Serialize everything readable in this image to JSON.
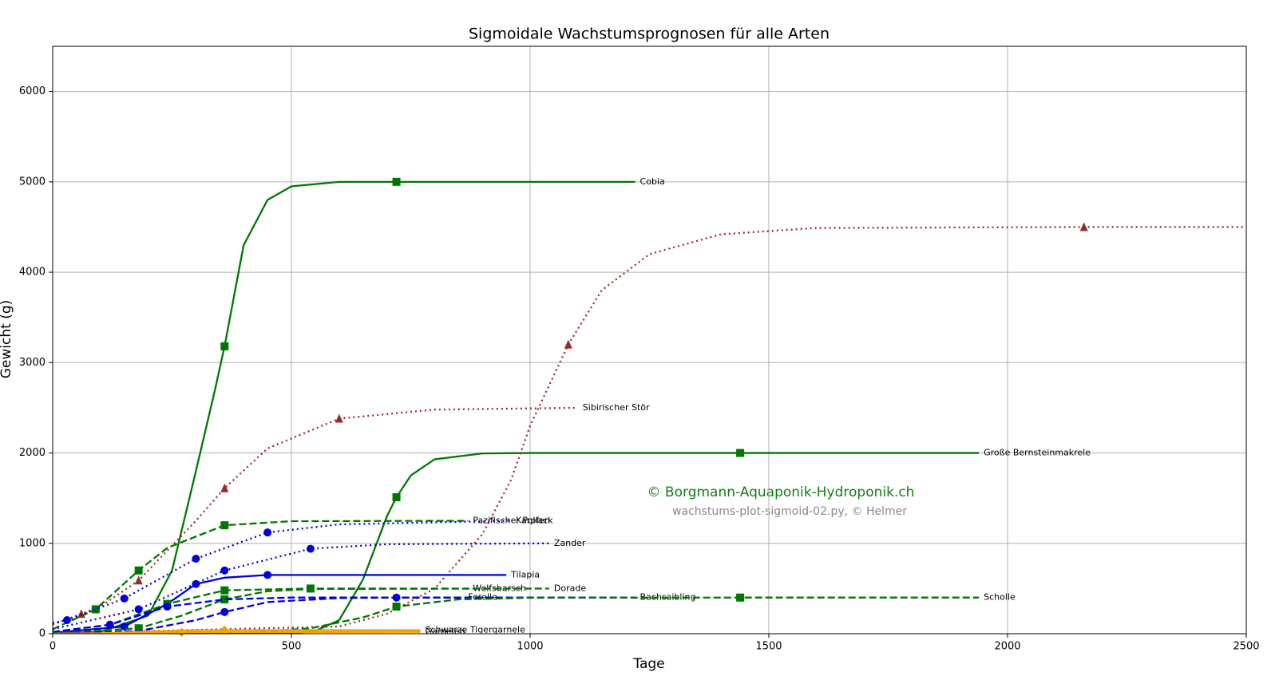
{
  "chart_data": {
    "type": "line",
    "title": "Sigmoidale Wachstumsprognosen für alle Arten",
    "x_label": "Tage",
    "y_label": "Gewicht (g)",
    "xlim": [
      0,
      2500
    ],
    "ylim": [
      0,
      6500
    ],
    "xticks": [
      0,
      500,
      1000,
      1500,
      2000,
      2500
    ],
    "yticks": [
      0,
      1000,
      2000,
      3000,
      4000,
      5000,
      6000
    ],
    "grid": true,
    "annotations": [
      "© Borgmann-Aquaponik-Hydroponik.ch",
      "wachstums-plot-sigmoid-02.py, © Helmer"
    ],
    "series": [
      {
        "name": "Cobia",
        "color": "#007700",
        "linestyle": "solid",
        "marker": "square",
        "x": [
          0,
          100,
          200,
          250,
          300,
          340,
          360,
          400,
          450,
          500,
          600,
          720,
          1220
        ],
        "values": [
          5,
          20,
          200,
          700,
          1800,
          2700,
          3180,
          4300,
          4800,
          4950,
          5000,
          5000,
          5000
        ],
        "markers": {
          "x": [
            360,
            720
          ],
          "values": [
            3180,
            5000
          ]
        }
      },
      {
        "name": "Große Bernsteinmakrele",
        "color": "#007700",
        "linestyle": "solid",
        "marker": "square",
        "x": [
          0,
          500,
          550,
          600,
          650,
          700,
          720,
          750,
          800,
          900,
          1000,
          1440,
          1940
        ],
        "values": [
          0,
          5,
          30,
          150,
          600,
          1300,
          1510,
          1750,
          1930,
          1995,
          2000,
          2000,
          2000
        ],
        "markers": {
          "x": [
            720,
            1440
          ],
          "values": [
            1510,
            2000
          ]
        }
      },
      {
        "name": "Sibirischer Stör",
        "color": "#992a2a",
        "linestyle": "dotted",
        "marker": "triangle",
        "x": [
          0,
          60,
          100,
          180,
          200,
          300,
          360,
          450,
          600,
          800,
          1100
        ],
        "values": [
          100,
          220,
          300,
          590,
          700,
          1250,
          1610,
          2050,
          2380,
          2480,
          2500
        ],
        "markers": {
          "x": [
            60,
            180,
            360,
            600
          ],
          "values": [
            220,
            590,
            1610,
            2380
          ]
        }
      },
      {
        "color": "#992a2a",
        "linestyle": "dotted",
        "marker": "triangle",
        "x": [
          0,
          600,
          700,
          800,
          900,
          960,
          1000,
          1080,
          1150,
          1250,
          1400,
          1600,
          2160,
          2500
        ],
        "values": [
          5,
          80,
          220,
          500,
          1100,
          1700,
          2300,
          3200,
          3800,
          4200,
          4420,
          4490,
          4500,
          4500
        ],
        "markers": {
          "x": [
            1080,
            2160
          ],
          "values": [
            3200,
            4500
          ]
        }
      },
      {
        "name": "Pazifischer Pollack",
        "color": "#007700",
        "linestyle": "dashed",
        "marker": "square",
        "x": [
          0,
          90,
          180,
          240,
          360,
          500,
          870
        ],
        "values": [
          50,
          270,
          700,
          950,
          1200,
          1245,
          1250
        ],
        "markers": {
          "x": [
            90,
            180,
            360
          ],
          "values": [
            270,
            700,
            1200
          ]
        }
      },
      {
        "name": "Karpfen",
        "color": "#0000dd",
        "linestyle": "dotted",
        "marker": "circle",
        "x": [
          0,
          30,
          150,
          300,
          450,
          600,
          960
        ],
        "values": [
          120,
          150,
          390,
          830,
          1120,
          1210,
          1250
        ],
        "markers": {
          "x": [
            30,
            150,
            300,
            450
          ],
          "values": [
            150,
            390,
            830,
            1120
          ]
        }
      },
      {
        "name": "Zander",
        "color": "#0000dd",
        "linestyle": "dotted",
        "marker": "circle",
        "x": [
          0,
          180,
          360,
          540,
          700,
          1040
        ],
        "values": [
          50,
          270,
          700,
          940,
          990,
          1000
        ],
        "markers": {
          "x": [
            180,
            360,
            540
          ],
          "values": [
            270,
            700,
            940
          ]
        }
      },
      {
        "name": "Tilapia",
        "color": "#0000dd",
        "linestyle": "solid",
        "marker": "circle",
        "x": [
          0,
          150,
          240,
          300,
          360,
          450,
          950
        ],
        "values": [
          10,
          80,
          330,
          550,
          620,
          650,
          650
        ],
        "markers": {
          "x": [
            150,
            300,
            450
          ],
          "values": [
            80,
            550,
            650
          ]
        }
      },
      {
        "name": "Wolfsbarsch",
        "color": "#007700",
        "linestyle": "dashed",
        "marker": "square",
        "x": [
          0,
          120,
          240,
          360,
          540,
          870
        ],
        "values": [
          20,
          100,
          330,
          480,
          500,
          500
        ],
        "markers": {
          "x": [
            240,
            360,
            540
          ],
          "values": [
            330,
            480,
            500
          ]
        }
      },
      {
        "name": "Dorade",
        "color": "#007700",
        "linestyle": "dashed",
        "marker": "square",
        "x": [
          0,
          180,
          270,
          360,
          450,
          540,
          1040
        ],
        "values": [
          5,
          60,
          200,
          380,
          470,
          495,
          500
        ],
        "markers": {
          "x": [
            180,
            360
          ],
          "values": [
            60,
            380
          ]
        }
      },
      {
        "name": "Forelle",
        "color": "#0000dd",
        "linestyle": "dashed",
        "marker": "circle",
        "x": [
          0,
          120,
          240,
          360,
          500,
          860
        ],
        "values": [
          20,
          100,
          300,
          380,
          400,
          400
        ],
        "markers": {
          "x": [
            120,
            240
          ],
          "values": [
            100,
            300
          ]
        }
      },
      {
        "name": "Bachsaibling",
        "color": "#0000dd",
        "linestyle": "dashed",
        "marker": "circle",
        "x": [
          0,
          180,
          300,
          360,
          450,
          600,
          720,
          1220
        ],
        "values": [
          0,
          30,
          150,
          240,
          350,
          395,
          400,
          400
        ],
        "markers": {
          "x": [
            360,
            720
          ],
          "values": [
            240,
            400
          ]
        }
      },
      {
        "name": "Scholle",
        "color": "#007700",
        "linestyle": "dashed",
        "marker": "square",
        "x": [
          0,
          400,
          540,
          650,
          720,
          850,
          1000,
          1440,
          1940
        ],
        "values": [
          0,
          10,
          60,
          180,
          300,
          380,
          398,
          400,
          400
        ],
        "markers": {
          "x": [
            720,
            1440
          ],
          "values": [
            300,
            400
          ]
        }
      },
      {
        "name": "Schwarze Tigergarnele",
        "color": "#f0a000",
        "linestyle": "solid",
        "marker": "diamond",
        "x": [
          0,
          100,
          200,
          300,
          360,
          770
        ],
        "values": [
          0,
          5,
          25,
          38,
          40,
          40
        ],
        "markers": {
          "x": [
            360
          ],
          "values": [
            40
          ]
        }
      },
      {
        "name": "Garnelen",
        "color": "#f0a000",
        "linestyle": "solid",
        "marker": "diamond",
        "x": [
          0,
          100,
          200,
          300,
          770
        ],
        "values": [
          0,
          3,
          12,
          18,
          20
        ],
        "markers": {
          "x": [
            270
          ],
          "values": [
            16
          ]
        }
      }
    ]
  }
}
